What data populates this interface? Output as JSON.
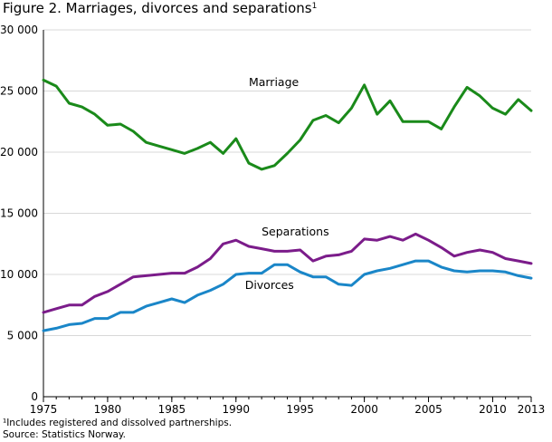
{
  "chart_data": {
    "type": "line",
    "title": "Figure 2. Marriages, divorces and separations",
    "title_superscript": "1",
    "xlabel": "",
    "ylabel": "",
    "xlim": [
      1975,
      2013
    ],
    "ylim": [
      0,
      30000
    ],
    "x_ticks": [
      "1975",
      "1980",
      "1985",
      "1990",
      "1995",
      "2000",
      "2005",
      "2010",
      "2013"
    ],
    "y_ticks": [
      "0",
      "5 000",
      "10 000",
      "15 000",
      "20 000",
      "25 000",
      "30 000"
    ],
    "grid": "horizontal",
    "x": [
      1975,
      1976,
      1977,
      1978,
      1979,
      1980,
      1981,
      1982,
      1983,
      1984,
      1985,
      1986,
      1987,
      1988,
      1989,
      1990,
      1991,
      1992,
      1993,
      1994,
      1995,
      1996,
      1997,
      1998,
      1999,
      2000,
      2001,
      2002,
      2003,
      2004,
      2005,
      2006,
      2007,
      2008,
      2009,
      2010,
      2011,
      2012,
      2013
    ],
    "series": [
      {
        "name": "Marriage",
        "color": "#1a8a1a",
        "values": [
          25900,
          25400,
          24000,
          23700,
          23100,
          22200,
          22300,
          21700,
          20800,
          20500,
          20200,
          19900,
          20300,
          20800,
          19900,
          21100,
          19100,
          18600,
          18900,
          19900,
          21000,
          22600,
          23000,
          22400,
          23600,
          25500,
          23100,
          24200,
          22500,
          22500,
          22500,
          21900,
          23700,
          25300,
          24600,
          23600,
          23100,
          24300,
          23400
        ]
      },
      {
        "name": "Separations",
        "color": "#7b1c8a",
        "values": [
          6900,
          7200,
          7500,
          7500,
          8200,
          8600,
          9200,
          9800,
          9900,
          10000,
          10100,
          10100,
          10600,
          11300,
          12500,
          12800,
          12300,
          12100,
          11900,
          11900,
          12000,
          11100,
          11500,
          11600,
          11900,
          12900,
          12800,
          13100,
          12800,
          13300,
          12800,
          12200,
          11500,
          11800,
          12000,
          11800,
          11300,
          11100,
          10900
        ]
      },
      {
        "name": "Divorces",
        "color": "#1a86c8",
        "values": [
          5400,
          5600,
          5900,
          6000,
          6400,
          6400,
          6900,
          6900,
          7400,
          7700,
          8000,
          7700,
          8300,
          8700,
          9200,
          10000,
          10100,
          10100,
          10800,
          10800,
          10200,
          9800,
          9800,
          9200,
          9100,
          10000,
          10300,
          10500,
          10800,
          11100,
          11100,
          10600,
          10300,
          10200,
          10300,
          10300,
          10200,
          9900,
          9700
        ]
      }
    ],
    "footnote": "¹Includes registered and dissolved partnerships.",
    "source": "Source: Statistics Norway."
  }
}
